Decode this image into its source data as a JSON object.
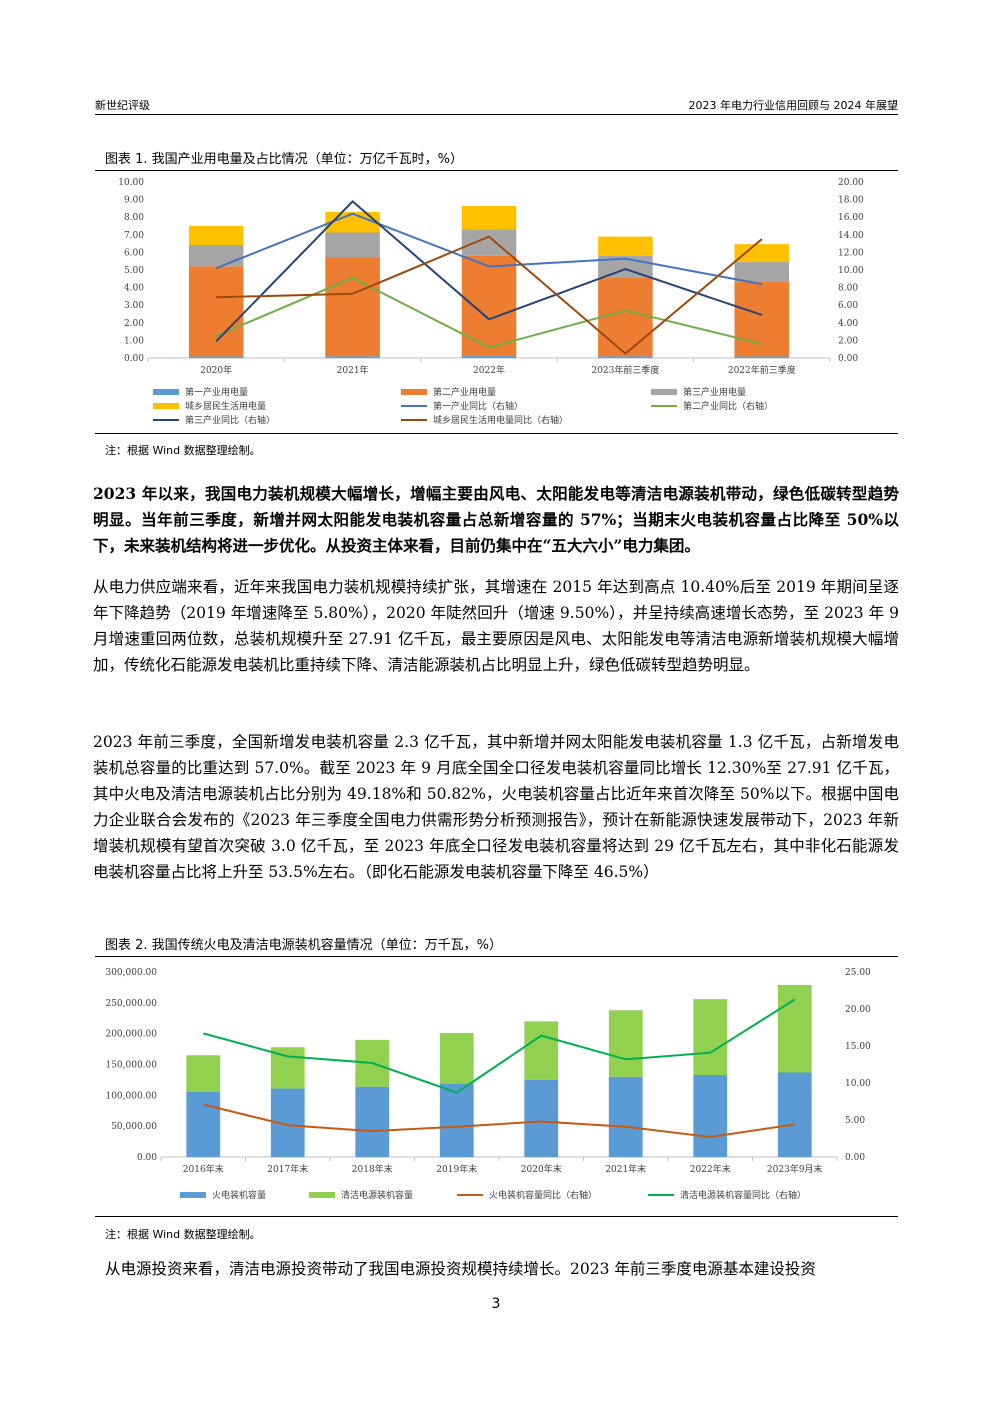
{
  "header": {
    "left": "新世纪评级",
    "right": "2023 年电力行业信用回顾与 2024 年展望"
  },
  "figure1": {
    "caption": "图表 1.   我国产业用电量及占比情况（单位：万亿千瓦时，%）",
    "note": "注：根据 Wind 数据整理绘制。",
    "chart_data": {
      "type": "bar",
      "categories": [
        "2020年",
        "2021年",
        "2022年",
        "2023年前三季度",
        "2022年前三季度"
      ],
      "stacked": true,
      "left_axis": {
        "min": 0,
        "max": 10,
        "ticks": [
          "0.00",
          "1.00",
          "2.00",
          "3.00",
          "4.00",
          "5.00",
          "6.00",
          "7.00",
          "8.00",
          "9.00",
          "10.00"
        ]
      },
      "right_axis": {
        "min": 0,
        "max": 20,
        "ticks": [
          "0.00",
          "2.00",
          "4.00",
          "6.00",
          "8.00",
          "10.00",
          "12.00",
          "14.00",
          "16.00",
          "18.00",
          "20.00"
        ]
      },
      "series": [
        {
          "name": "第一产业用电量",
          "kind": "bar",
          "axis": "left",
          "color": "#5B9BD5",
          "values": [
            0.09,
            0.1,
            0.11,
            0.1,
            0.09
          ]
        },
        {
          "name": "第二产业用电量",
          "kind": "bar",
          "axis": "left",
          "color": "#ED7D31",
          "values": [
            5.12,
            5.61,
            5.7,
            4.49,
            4.23
          ]
        },
        {
          "name": "第三产业用电量",
          "kind": "bar",
          "axis": "left",
          "color": "#A5A5A5",
          "values": [
            1.21,
            1.42,
            1.49,
            1.22,
            1.13
          ]
        },
        {
          "name": "城乡居民生活用电量",
          "kind": "bar",
          "axis": "left",
          "color": "#FFC000",
          "values": [
            1.09,
            1.17,
            1.34,
            1.09,
            1.02
          ]
        },
        {
          "name": "第一产业同比（右轴）",
          "kind": "line",
          "axis": "right",
          "color": "#4472C4",
          "values": [
            10.2,
            16.4,
            10.4,
            11.3,
            8.4
          ]
        },
        {
          "name": "第二产业同比（右轴）",
          "kind": "line",
          "axis": "right",
          "color": "#70AD47",
          "values": [
            2.5,
            9.1,
            1.2,
            5.4,
            1.6
          ]
        },
        {
          "name": "第三产业同比（右轴）",
          "kind": "line",
          "axis": "right",
          "color": "#264478",
          "values": [
            1.9,
            17.8,
            4.4,
            10.1,
            4.9
          ]
        },
        {
          "name": "城乡居民生活用电量同比（右轴）",
          "kind": "line",
          "axis": "right",
          "color": "#9E480E",
          "values": [
            6.9,
            7.3,
            13.8,
            0.5,
            13.5
          ]
        }
      ],
      "legend": "bottom"
    }
  },
  "paragraphs": {
    "p1": "2023 年以来，我国电力装机规模大幅增长，增幅主要由风电、太阳能发电等清洁电源装机带动，绿色低碳转型趋势明显。当年前三季度，新增并网太阳能发电装机容量占总新增容量的 57%；当期末火电装机容量占比降至 50%以下，未来装机结构将进一步优化。从投资主体来看，目前仍集中在“五大六小”电力集团。",
    "p2": "从电力供应端来看，近年来我国电力装机规模持续扩张，其增速在 2015 年达到高点 10.40%后至 2019 年期间呈逐年下降趋势（2019 年增速降至 5.80%），2020 年陡然回升（增速 9.50%），并呈持续高速增长态势，至 2023 年 9 月增速重回两位数，总装机规模升至 27.91 亿千瓦，最主要原因是风电、太阳能发电等清洁电源新增装机规模大幅增加，传统化石能源发电装机比重持续下降、清洁能源装机占比明显上升，绿色低碳转型趋势明显。",
    "p3": "2023 年前三季度，全国新增发电装机容量 2.3 亿千瓦，其中新增并网太阳能发电装机容量 1.3 亿千瓦，占新增发电装机总容量的比重达到 57.0%。截至 2023 年 9 月底全国全口径发电装机容量同比增长 12.30%至 27.91 亿千瓦，其中火电及清洁电源装机占比分别为 49.18%和 50.82%，火电装机容量占比近年来首次降至 50%以下。根据中国电力企业联合会发布的《2023 年三季度全国电力供需形势分析预测报告》，预计在新能源快速发展带动下，2023 年新增装机规模有望首次突破 3.0 亿千瓦，至 2023 年底全口径发电装机容量将达到 29 亿千瓦左右，其中非化石能源发电装机容量占比将上升至 53.5%左右。（即化石能源发电装机容量下降至 46.5%）",
    "p4": "从电源投资来看，清洁电源投资带动了我国电源投资规模持续增长。2023 年前三季度电源基本建设投资"
  },
  "figure2": {
    "caption": "图表 2.   我国传统火电及清洁电源装机容量情况（单位：万千瓦，%）",
    "note": "注：根据 Wind 数据整理绘制。",
    "chart_data": {
      "type": "bar",
      "categories": [
        "2016年末",
        "2017年末",
        "2018年末",
        "2019年末",
        "2020年末",
        "2021年末",
        "2022年末",
        "2023年9月末"
      ],
      "stacked": true,
      "left_axis": {
        "min": 0,
        "max": 300000,
        "ticks": [
          "0.00",
          "50,000.00",
          "100,000.00",
          "150,000.00",
          "200,000.00",
          "250,000.00",
          "300,000.00"
        ]
      },
      "right_axis": {
        "min": 0,
        "max": 25,
        "ticks": [
          "0.00",
          "5.00",
          "10.00",
          "15.00",
          "20.00",
          "25.00"
        ]
      },
      "series": [
        {
          "name": "火电装机容量",
          "kind": "bar",
          "axis": "left",
          "color": "#5B9BD5",
          "values": [
            106000,
            111000,
            114000,
            119000,
            125000,
            130000,
            133000,
            137000
          ]
        },
        {
          "name": "清洁电源装机容量",
          "kind": "bar",
          "axis": "left",
          "color": "#92D050",
          "values": [
            59000,
            67000,
            76000,
            82000,
            95000,
            108000,
            123000,
            142000
          ]
        },
        {
          "name": "火电装机容量同比（右轴）",
          "kind": "line",
          "axis": "right",
          "color": "#C55A11",
          "values": [
            7.1,
            4.3,
            3.5,
            4.1,
            4.8,
            4.1,
            2.7,
            4.4
          ]
        },
        {
          "name": "清洁电源装机容量同比（右轴）",
          "kind": "line",
          "axis": "right",
          "color": "#00B050",
          "values": [
            16.7,
            13.6,
            12.7,
            8.7,
            16.4,
            13.2,
            14.1,
            21.3
          ]
        }
      ],
      "legend": "bottom"
    }
  },
  "page_number": "3"
}
